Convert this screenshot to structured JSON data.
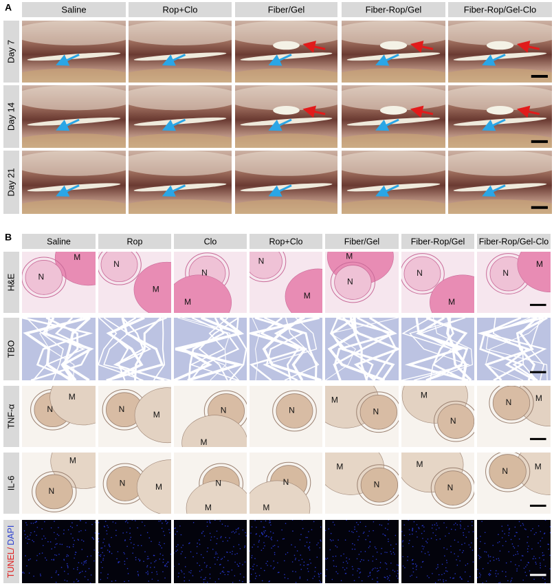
{
  "panel_a": {
    "label": "A",
    "columns": [
      "Saline",
      "Rop+Clo",
      "Fiber/Gel",
      "Fiber-Rop/Gel",
      "Fiber-Rop/Gel-Clo"
    ],
    "rows": [
      "Day 7",
      "Day 14",
      "Day 21"
    ]
  },
  "panel_b": {
    "label": "B",
    "columns": [
      "Saline",
      "Rop",
      "Clo",
      "Rop+Clo",
      "Fiber/Gel",
      "Fiber-Rop/Gel",
      "Fiber-Rop/Gel-Clo"
    ],
    "rows": [
      {
        "label": "H&E",
        "annotations": [
          [
            "M",
            "N"
          ],
          [
            "N",
            "M"
          ],
          [
            "N",
            "M"
          ],
          [
            "N",
            "M"
          ],
          [
            "M",
            "N"
          ],
          [
            "N",
            "M"
          ],
          [
            "N",
            "M"
          ]
        ]
      },
      {
        "label": "TBO"
      },
      {
        "label": "TNF-α",
        "annotations": [
          [
            "N",
            "M"
          ],
          [
            "N",
            "M"
          ],
          [
            "N",
            "M"
          ],
          [
            "N"
          ],
          [
            "M",
            "N"
          ],
          [
            "M",
            "N"
          ],
          [
            "M",
            "N"
          ]
        ]
      },
      {
        "label": "IL-6",
        "annotations": [
          [
            "M",
            "N"
          ],
          [
            "N",
            "M"
          ],
          [
            "N",
            "M"
          ],
          [
            "N",
            "M"
          ],
          [
            "M",
            "N"
          ],
          [
            "M",
            "N"
          ],
          [
            "M",
            "N"
          ]
        ]
      },
      {
        "label_parts": [
          "TUNEL/",
          "DAPI"
        ]
      }
    ]
  }
}
